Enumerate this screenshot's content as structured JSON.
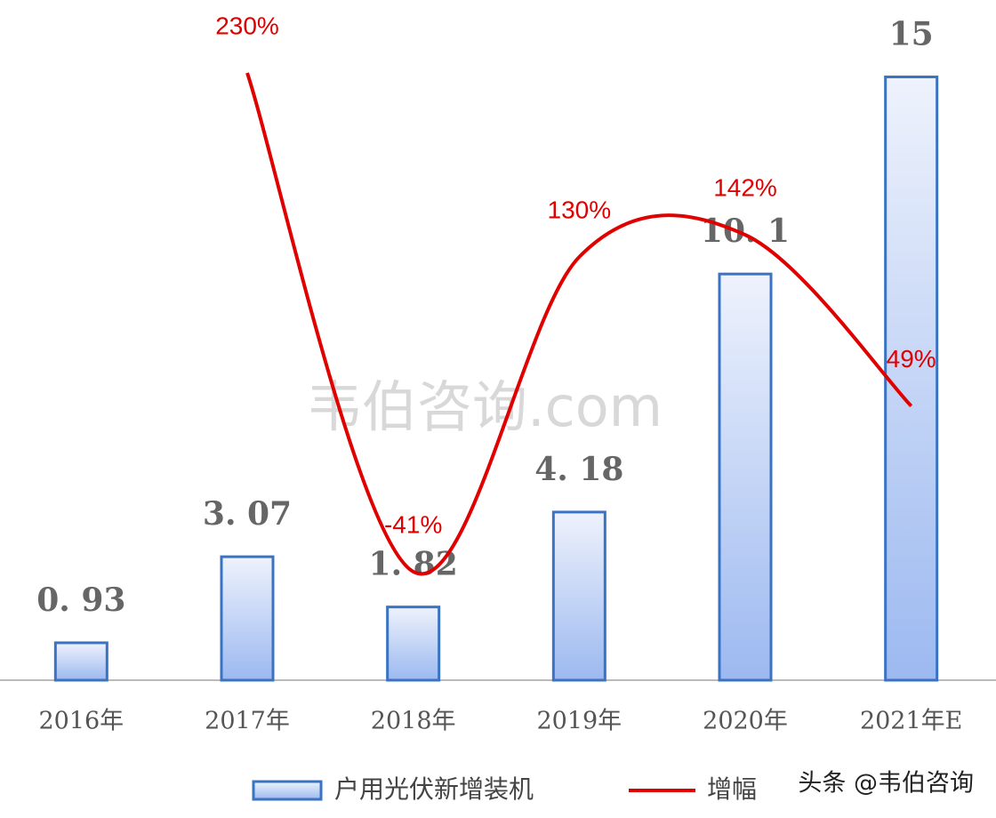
{
  "chart_data": {
    "type": "bar",
    "categories": [
      "2016年",
      "2017年",
      "2018年",
      "2019年",
      "2020年",
      "2021年E"
    ],
    "series": [
      {
        "name": "户用光伏新增装机",
        "type": "bar",
        "color": "#3a73c4",
        "values": [
          0.93,
          3.07,
          1.82,
          4.18,
          10.1,
          15
        ],
        "value_labels": [
          "0. 93",
          "3. 07",
          "1. 82",
          "4. 18",
          "10. 1",
          "15"
        ]
      },
      {
        "name": "增幅",
        "type": "line",
        "axis": "y2",
        "color": "#e00000",
        "values": [
          null,
          230,
          -41,
          130,
          142,
          49
        ],
        "value_labels": [
          null,
          "230%",
          "-41%",
          "130%",
          "142%",
          "49%"
        ]
      }
    ],
    "ylim": [
      0,
      15.1
    ],
    "y2lim": [
      -100,
      230
    ],
    "legend": "bottom",
    "watermark": "韦伯咨询.com",
    "source": "头条 @韦伯咨询"
  }
}
